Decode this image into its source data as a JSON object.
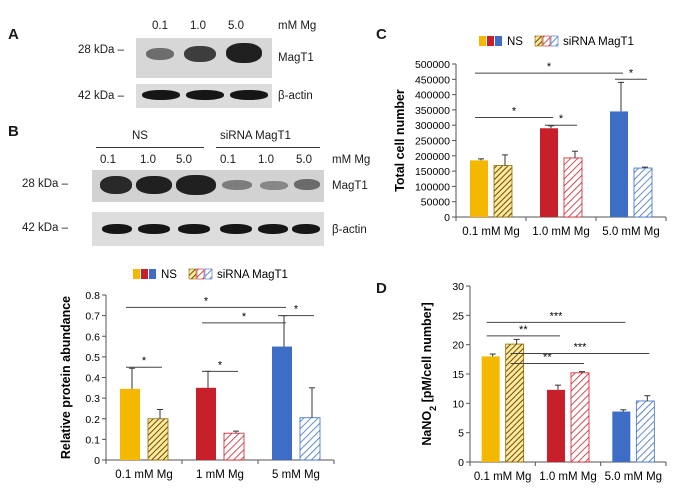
{
  "panels": {
    "A": {
      "letter": "A",
      "conc_labels": [
        "0.1",
        "1.0",
        "5.0"
      ],
      "unit": "mM Mg",
      "rows": [
        {
          "kda": "28 kDa –",
          "protein": "MagT1"
        },
        {
          "kda": "42 kDa –",
          "protein": "β-actin"
        }
      ]
    },
    "B": {
      "letter": "B",
      "groups": [
        "NS",
        "siRNA MagT1"
      ],
      "conc_labels": [
        "0.1",
        "1.0",
        "5.0",
        "0.1",
        "1.0",
        "5.0"
      ],
      "unit": "mM Mg",
      "rows": [
        {
          "kda": "28 kDa –",
          "protein": "MagT1"
        },
        {
          "kda": "42 kDa –",
          "protein": "β-actin"
        }
      ]
    },
    "C": {
      "letter": "C"
    },
    "D": {
      "letter": "D"
    }
  },
  "colors": {
    "c01": "#f5b800",
    "c1": "#c8202a",
    "c5": "#3d6dc4",
    "err": "#333333",
    "axis": "#555555"
  },
  "chart_data": [
    {
      "id": "B-quant",
      "type": "bar",
      "categories": [
        "0.1 mM Mg",
        "1 mM Mg",
        "5 mM Mg"
      ],
      "series": [
        {
          "name": "NS",
          "values": [
            0.345,
            0.35,
            0.55
          ],
          "errors": [
            0.1,
            0.08,
            0.15
          ]
        },
        {
          "name": "siRNA MagT1",
          "values": [
            0.2,
            0.13,
            0.205
          ],
          "errors": [
            0.045,
            0.01,
            0.145
          ]
        }
      ],
      "ylabel": "Relative protein abundance",
      "ylim": [
        0,
        0.8
      ],
      "yticks": [
        "0",
        "0.1",
        "0.2",
        "0.3",
        "0.4",
        "0.5",
        "0.6",
        "0.7",
        "0.8"
      ],
      "legend": [
        "NS",
        "siRNA MagT1"
      ],
      "significance": [
        {
          "label": "*",
          "from": [
            0,
            0
          ],
          "to": [
            0,
            1
          ],
          "y": 0.45
        },
        {
          "label": "*",
          "from": [
            1,
            0
          ],
          "to": [
            1,
            1
          ],
          "y": 0.43
        },
        {
          "label": "*",
          "from": [
            2,
            0
          ],
          "to": [
            2,
            1
          ],
          "y": 0.7
        },
        {
          "label": "*",
          "from": [
            1,
            0
          ],
          "to": [
            2,
            0
          ],
          "y": 0.665
        },
        {
          "label": "*",
          "from": [
            0,
            0
          ],
          "to": [
            2,
            0
          ],
          "y": 0.74
        }
      ]
    },
    {
      "id": "C",
      "type": "bar",
      "categories": [
        "0.1 mM Mg",
        "1.0 mM Mg",
        "5.0 mM Mg"
      ],
      "series": [
        {
          "name": "NS",
          "values": [
            185000,
            290000,
            345000
          ],
          "errors": [
            5000,
            8000,
            95000
          ]
        },
        {
          "name": "siRNA MagT1",
          "values": [
            168000,
            193000,
            160000
          ],
          "errors": [
            35000,
            22000,
            3000
          ]
        }
      ],
      "ylabel": "Total cell number",
      "ylim": [
        0,
        500000
      ],
      "yticks": [
        "0",
        "50000",
        "100000",
        "150000",
        "200000",
        "250000",
        "300000",
        "350000",
        "400000",
        "450000",
        "500000"
      ],
      "legend": [
        "NS",
        "siRNA MagT1"
      ],
      "significance": [
        {
          "label": "*",
          "from": [
            1,
            0
          ],
          "to": [
            1,
            1
          ],
          "y": 300000
        },
        {
          "label": "*",
          "from": [
            2,
            0
          ],
          "to": [
            2,
            1
          ],
          "y": 450000
        },
        {
          "label": "*",
          "from": [
            0,
            0
          ],
          "to": [
            1,
            0
          ],
          "y": 325000
        },
        {
          "label": "*",
          "from": [
            0,
            0
          ],
          "to": [
            2,
            0
          ],
          "y": 470000
        }
      ]
    },
    {
      "id": "D",
      "type": "bar",
      "categories": [
        "0.1 mM Mg",
        "1.0 mM Mg",
        "5.0 mM Mg"
      ],
      "series": [
        {
          "name": "NS",
          "values": [
            18,
            12.3,
            8.6
          ],
          "errors": [
            0.4,
            0.8,
            0.3
          ]
        },
        {
          "name": "siRNA MagT1",
          "values": [
            20.1,
            15.2,
            10.4
          ],
          "errors": [
            0.8,
            0.2,
            0.9
          ]
        }
      ],
      "ylabel_main": "NaNO",
      "ylabel_sub": "2",
      "ylabel_rest": " [pM/cell number]",
      "ylim": [
        0,
        30
      ],
      "yticks": [
        "0",
        "5",
        "10",
        "15",
        "20",
        "25",
        "30"
      ],
      "significance": [
        {
          "label": "**",
          "from": [
            0,
            0
          ],
          "to": [
            1,
            0
          ],
          "y": 21.5
        },
        {
          "label": "***",
          "from": [
            0,
            0
          ],
          "to": [
            2,
            0
          ],
          "y": 23.8
        },
        {
          "label": "**",
          "from": [
            0,
            1
          ],
          "to": [
            1,
            1
          ],
          "y": 16.8
        },
        {
          "label": "***",
          "from": [
            0,
            1
          ],
          "to": [
            2,
            1
          ],
          "y": 18.5
        }
      ]
    }
  ]
}
